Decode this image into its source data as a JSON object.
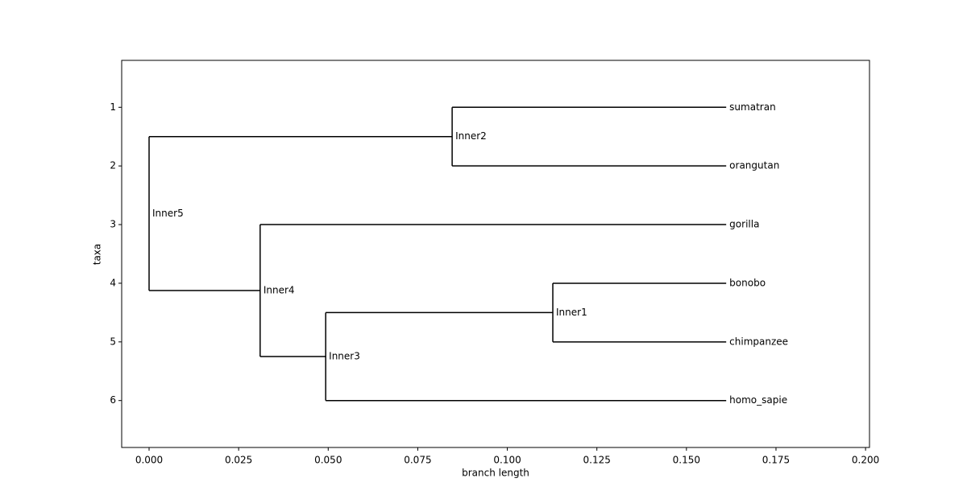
{
  "chart_data": {
    "type": "tree",
    "xlabel": "branch length",
    "ylabel": "taxa",
    "xlim": [
      -0.00765,
      0.2011
    ],
    "ylim": [
      6.8,
      0.2
    ],
    "xticks": [
      {
        "value": 0,
        "label": "0.000"
      },
      {
        "value": 0.025,
        "label": "0.025"
      },
      {
        "value": 0.05,
        "label": "0.050"
      },
      {
        "value": 0.075,
        "label": "0.075"
      },
      {
        "value": 0.1,
        "label": "0.100"
      },
      {
        "value": 0.125,
        "label": "0.125"
      },
      {
        "value": 0.15,
        "label": "0.150"
      },
      {
        "value": 0.175,
        "label": "0.175"
      },
      {
        "value": 0.2,
        "label": "0.200"
      }
    ],
    "yticks": [
      1,
      2,
      3,
      4,
      5,
      6
    ],
    "color": "#000000",
    "nodes": [
      {
        "name": "Inner5",
        "x": 0,
        "y": 2.8125
      },
      {
        "name": "Inner2",
        "x": 0.0846,
        "y": 1.5,
        "parent": "Inner5"
      },
      {
        "name": "sumatran",
        "x": 0.1611,
        "y": 1,
        "parent": "Inner2"
      },
      {
        "name": "orangutan",
        "x": 0.1611,
        "y": 2,
        "parent": "Inner2"
      },
      {
        "name": "Inner4",
        "x": 0.031,
        "y": 4.125,
        "parent": "Inner5"
      },
      {
        "name": "gorilla",
        "x": 0.1611,
        "y": 3,
        "parent": "Inner4"
      },
      {
        "name": "Inner3",
        "x": 0.0493,
        "y": 5.25,
        "parent": "Inner4"
      },
      {
        "name": "Inner1",
        "x": 0.1127,
        "y": 4.5,
        "parent": "Inner3"
      },
      {
        "name": "bonobo",
        "x": 0.1611,
        "y": 4,
        "parent": "Inner1"
      },
      {
        "name": "chimpanzee",
        "x": 0.1611,
        "y": 5,
        "parent": "Inner1"
      },
      {
        "name": "homo_sapie",
        "x": 0.1611,
        "y": 6,
        "parent": "Inner3"
      }
    ]
  }
}
